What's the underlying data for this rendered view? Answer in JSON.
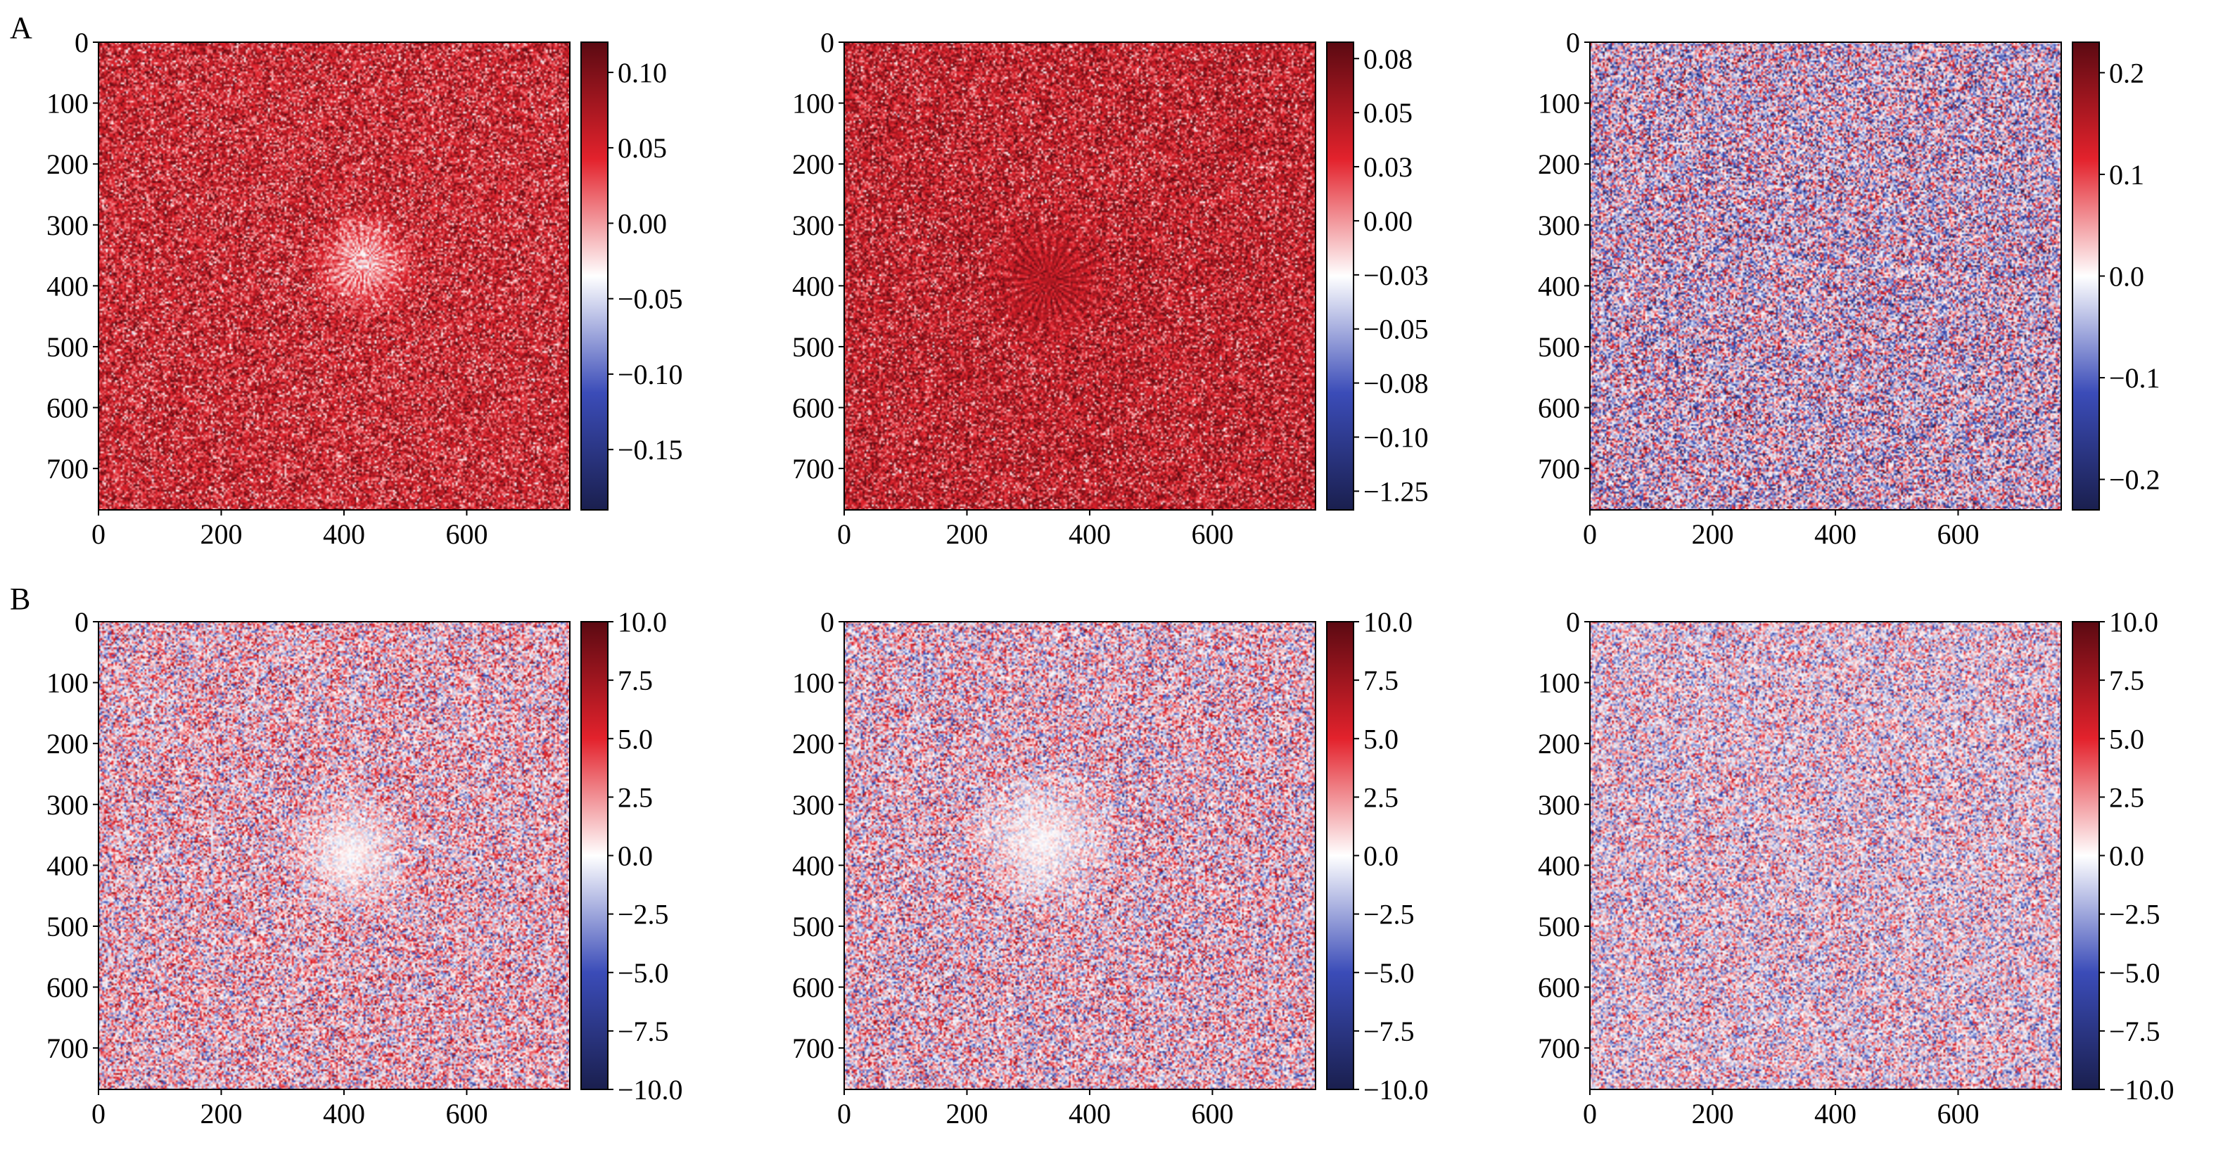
{
  "figure": {
    "rows": [
      {
        "label": "A"
      },
      {
        "label": "B"
      }
    ]
  },
  "colors": {
    "cmap_low": "#1a1f4e",
    "cmap_mid_low": "#3b4cb8",
    "cmap_mid": "#ffffff",
    "cmap_mid_high": "#e3222c",
    "cmap_high": "#5b0a12"
  },
  "chart_data": [
    {
      "type": "heatmap",
      "row": "A",
      "col": 0,
      "xlim": [
        0,
        768
      ],
      "ylim": [
        768,
        0
      ],
      "xticks": [
        0,
        200,
        400,
        600
      ],
      "yticks": [
        0,
        100,
        200,
        300,
        400,
        500,
        600,
        700
      ],
      "xtick_labels": [
        "0",
        "200",
        "400",
        "600"
      ],
      "ytick_labels": [
        "0",
        "100",
        "200",
        "300",
        "400",
        "500",
        "600",
        "700"
      ],
      "colorbar": {
        "min": -0.19,
        "max": 0.12,
        "ticks": [
          0.1,
          0.05,
          0.0,
          -0.05,
          -0.1,
          -0.15
        ],
        "tick_labels": [
          "0.10",
          "0.05",
          "0.00",
          "−0.05",
          "−0.10",
          "−0.15"
        ]
      },
      "texture": {
        "bias": 0.55,
        "noise": 0.35,
        "spot": {
          "x": 430,
          "y": 360,
          "r": 95,
          "val": 0.05,
          "rays": true
        }
      }
    },
    {
      "type": "heatmap",
      "row": "A",
      "col": 1,
      "xlim": [
        0,
        768
      ],
      "ylim": [
        768,
        0
      ],
      "xticks": [
        0,
        200,
        400,
        600
      ],
      "yticks": [
        0,
        100,
        200,
        300,
        400,
        500,
        600,
        700
      ],
      "xtick_labels": [
        "0",
        "200",
        "400",
        "600"
      ],
      "ytick_labels": [
        "0",
        "100",
        "200",
        "300",
        "400",
        "500",
        "600",
        "700"
      ],
      "colorbar": {
        "min": -1.35,
        "max": 0.09,
        "tick_labels": [
          "0.08",
          "0.05",
          "0.03",
          "0.00",
          "−0.03",
          "−0.05",
          "−0.08",
          "−0.10",
          "−1.25"
        ]
      },
      "texture": {
        "bias": 0.6,
        "noise": 0.35,
        "spot": {
          "x": 330,
          "y": 390,
          "r": 120,
          "val": 0.7,
          "rays": true
        }
      }
    },
    {
      "type": "heatmap",
      "row": "A",
      "col": 2,
      "xlim": [
        0,
        768
      ],
      "ylim": [
        768,
        0
      ],
      "xticks": [
        0,
        200,
        400,
        600
      ],
      "yticks": [
        0,
        100,
        200,
        300,
        400,
        500,
        600,
        700
      ],
      "xtick_labels": [
        "0",
        "200",
        "400",
        "600"
      ],
      "ytick_labels": [
        "0",
        "100",
        "200",
        "300",
        "400",
        "500",
        "600",
        "700"
      ],
      "colorbar": {
        "min": -0.23,
        "max": 0.23,
        "ticks": [
          0.2,
          0.1,
          0.0,
          -0.1,
          -0.2
        ],
        "tick_labels": [
          "0.2",
          "0.1",
          "0.0",
          "−0.1",
          "−0.2"
        ]
      },
      "texture": {
        "bias": -0.05,
        "noise": 0.55,
        "spot": null
      }
    },
    {
      "type": "heatmap",
      "row": "B",
      "col": 0,
      "xlim": [
        0,
        768
      ],
      "ylim": [
        768,
        0
      ],
      "xticks": [
        0,
        200,
        400,
        600
      ],
      "yticks": [
        0,
        100,
        200,
        300,
        400,
        500,
        600,
        700
      ],
      "xtick_labels": [
        "0",
        "200",
        "400",
        "600"
      ],
      "ytick_labels": [
        "0",
        "100",
        "200",
        "300",
        "400",
        "500",
        "600",
        "700"
      ],
      "colorbar": {
        "min": -10,
        "max": 10,
        "ticks": [
          10.0,
          7.5,
          5.0,
          2.5,
          0.0,
          -2.5,
          -5.0,
          -7.5,
          -10.0
        ],
        "tick_labels": [
          "10.0",
          "7.5",
          "5.0",
          "2.5",
          "0.0",
          "−2.5",
          "−5.0",
          "−7.5",
          "−10.0"
        ]
      },
      "texture": {
        "bias": 0.08,
        "noise": 0.45,
        "spot": {
          "x": 410,
          "y": 380,
          "r": 120,
          "val": 0.0,
          "rays": false
        }
      }
    },
    {
      "type": "heatmap",
      "row": "B",
      "col": 1,
      "xlim": [
        0,
        768
      ],
      "ylim": [
        768,
        0
      ],
      "xticks": [
        0,
        200,
        400,
        600
      ],
      "yticks": [
        0,
        100,
        200,
        300,
        400,
        500,
        600,
        700
      ],
      "xtick_labels": [
        "0",
        "200",
        "400",
        "600"
      ],
      "ytick_labels": [
        "0",
        "100",
        "200",
        "300",
        "400",
        "500",
        "600",
        "700"
      ],
      "colorbar": {
        "min": -10,
        "max": 10,
        "ticks": [
          10.0,
          7.5,
          5.0,
          2.5,
          0.0,
          -2.5,
          -5.0,
          -7.5,
          -10.0
        ],
        "tick_labels": [
          "10.0",
          "7.5",
          "5.0",
          "2.5",
          "0.0",
          "−2.5",
          "−5.0",
          "−7.5",
          "−10.0"
        ]
      },
      "texture": {
        "bias": 0.05,
        "noise": 0.45,
        "spot": {
          "x": 320,
          "y": 360,
          "r": 140,
          "val": 0.0,
          "rays": false
        }
      }
    },
    {
      "type": "heatmap",
      "row": "B",
      "col": 2,
      "xlim": [
        0,
        768
      ],
      "ylim": [
        768,
        0
      ],
      "xticks": [
        0,
        200,
        400,
        600
      ],
      "yticks": [
        0,
        100,
        200,
        300,
        400,
        500,
        600,
        700
      ],
      "xtick_labels": [
        "0",
        "200",
        "400",
        "600"
      ],
      "ytick_labels": [
        "0",
        "100",
        "200",
        "300",
        "400",
        "500",
        "600",
        "700"
      ],
      "colorbar": {
        "min": -10,
        "max": 10,
        "ticks": [
          10.0,
          7.5,
          5.0,
          2.5,
          0.0,
          -2.5,
          -5.0,
          -7.5,
          -10.0
        ],
        "tick_labels": [
          "10.0",
          "7.5",
          "5.0",
          "2.5",
          "0.0",
          "−2.5",
          "−5.0",
          "−7.5",
          "−10.0"
        ]
      },
      "texture": {
        "bias": 0.0,
        "noise": 0.4,
        "spot": null
      }
    }
  ]
}
